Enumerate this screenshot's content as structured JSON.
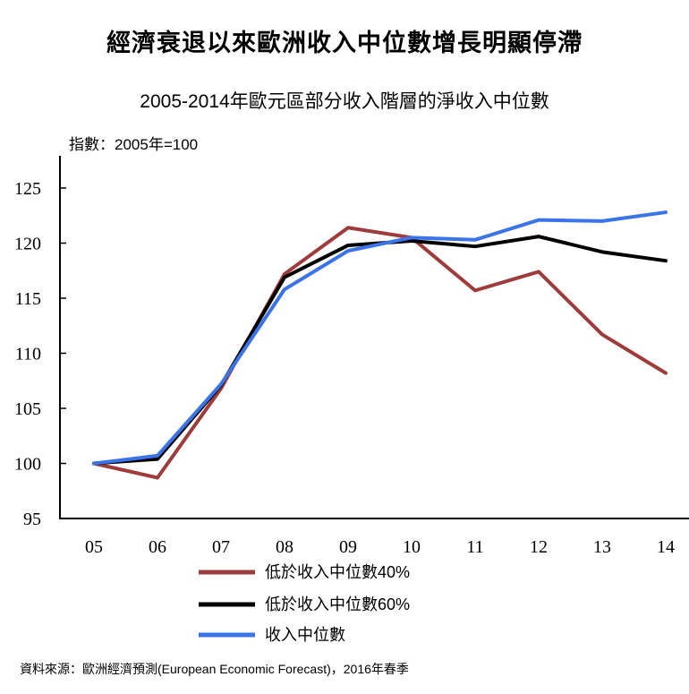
{
  "title": "經濟衰退以來歐洲收入中位數增長明顯停滯",
  "subtitle": "2005-2014年歐元區部分收入階層的淨收入中位數",
  "unit_label": "指數：2005年=100",
  "source": "資料來源：歐洲經濟預測(European Economic Forecast)，2016年春季",
  "chart_data": {
    "type": "line",
    "title": "2005-2014年歐元區部分收入階層的淨收入中位數",
    "xlabel": "",
    "ylabel": "指數：2005年=100",
    "categories": [
      "05",
      "06",
      "07",
      "08",
      "09",
      "10",
      "11",
      "12",
      "13",
      "14"
    ],
    "yticks": [
      "95",
      "100",
      "105",
      "110",
      "115",
      "120",
      "125"
    ],
    "ylim": [
      95,
      127.5
    ],
    "grid": false,
    "legend_position": "bottom",
    "series": [
      {
        "name": "低於收入中位數40%",
        "color": "#9e3b3b",
        "values": [
          100,
          98.7,
          106.8,
          117.2,
          121.4,
          120.5,
          115.7,
          117.4,
          111.7,
          108.2
        ]
      },
      {
        "name": "低於收入中位數60%",
        "color": "#000000",
        "values": [
          100,
          100.4,
          107.1,
          116.9,
          119.8,
          120.2,
          119.7,
          120.6,
          119.2,
          118.4
        ]
      },
      {
        "name": "收入中位數",
        "color": "#3b73e8",
        "values": [
          100,
          100.7,
          107.2,
          115.8,
          119.3,
          120.5,
          120.3,
          122.1,
          122.0,
          122.8
        ]
      }
    ]
  }
}
